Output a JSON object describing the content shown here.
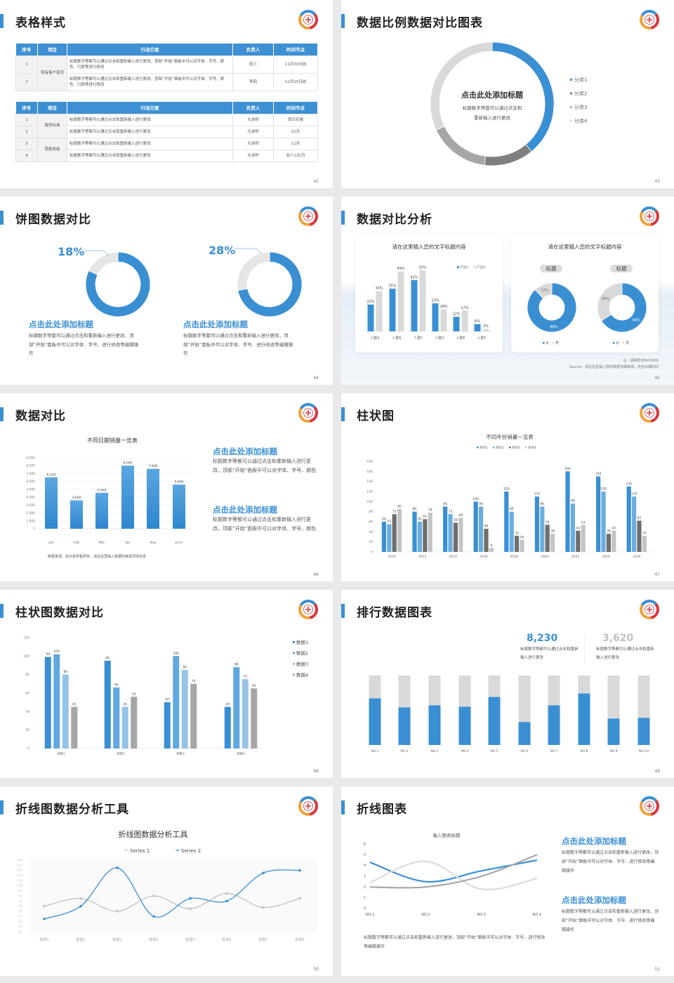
{
  "slides": [
    {
      "title": "表格样式",
      "page": "42"
    },
    {
      "title": "数据比例数据对比图表",
      "page": "43"
    },
    {
      "title": "饼图数据对比",
      "page": "44"
    },
    {
      "title": "数据对比分析",
      "page": "45"
    },
    {
      "title": "数据对比",
      "page": "46"
    },
    {
      "title": "柱状图",
      "page": "47"
    },
    {
      "title": "柱状图数据对比",
      "page": "48"
    },
    {
      "title": "排行数据图表",
      "page": "49"
    },
    {
      "title": "折线图数据分析工具",
      "page": "50"
    },
    {
      "title": "折线图表",
      "page": "51"
    }
  ],
  "tables": [
    {
      "headers": [
        "序号",
        "项目",
        "行动方案",
        "负责人",
        "时间节点"
      ],
      "group": "保有客户激活",
      "rows": [
        {
          "no": "1",
          "plan": "标题数字等都可以通过点击和重新输入进行更改，顶部“开始”面板中可以对字体、字号、颜色、行距等进行修改",
          "owner": "张三",
          "time": "11月30日前"
        },
        {
          "no": "2",
          "plan": "标题数字等都可以通过点击和重新输入进行更改，顶部“开始”面板中可以对字体、字号、颜色、行距等进行修改",
          "owner": "李四",
          "time": "11月15日前"
        }
      ]
    },
    {
      "headers": [
        "序号",
        "项目",
        "行动方案",
        "负责人",
        "时间节点"
      ],
      "groups": [
        "服务标准",
        "销售技能"
      ],
      "rows": [
        {
          "no": "1",
          "plan": "标题数字等都可以通过点击和重新输入进行更改",
          "owner": "大讲师",
          "time": "即日实施"
        },
        {
          "no": "2",
          "plan": "标题数字等都可以通过点击和重新输入进行更改",
          "owner": "大讲师",
          "time": "11月"
        },
        {
          "no": "3",
          "plan": "标题数字等都可以通过点击和重新输入进行更改",
          "owner": "大讲师",
          "time": "11月"
        },
        {
          "no": "4",
          "plan": "标题数字等都可以通过点击和重新输入进行更改",
          "owner": "大讲师",
          "time": "至少1次/月"
        }
      ]
    }
  ],
  "s43": {
    "heading": "点击此处添加标题",
    "line1": "标题数字等都可以通过点击和",
    "line2": "重新输入进行更改"
  },
  "s44": [
    {
      "percent": "18%",
      "heading": "点击此处添加标题",
      "text": "标题数字等都可以通过点击和重新输入进行更改，顶部“开始”面板中可以对字体、字号、进行修改等编辑操作"
    },
    {
      "percent": "28%",
      "heading": "点击此处添加标题",
      "text": "标题数字等都可以通过点击和重新输入进行更改，顶部“开始”面板中可以对字体、字号、进行修改等编辑操作"
    }
  ],
  "s45": {
    "card1_title": "请在这里输入您的文字标题内容",
    "card2_title": "请在这里输入您的文字标题内容",
    "pill1": "标题",
    "pill2": "标题",
    "note": "注：调研样本N=5000",
    "source": "Source：请在这里输入您的数据详细来源，包含日期时间"
  },
  "s46": {
    "source": "数据来源：启示家零售研究，请在这里输入数据的来源详情信息",
    "blocks": [
      {
        "heading": "点击此处添加标题",
        "text": "标题数字等都可以通过点击和重新输入进行更改，顶部“开始”面板中可以对字体、字号、颜色"
      },
      {
        "heading": "点击此处添加标题",
        "text": "标题数字等都可以通过点击和重新输入进行更改，顶部“开始”面板中可以对字体、字号、颜色"
      }
    ]
  },
  "s49": {
    "stats": [
      {
        "value": "8,230",
        "text": "标题数字等都可以通过点击和重新输入进行更改",
        "color": "#3a8fd3"
      },
      {
        "value": "3,620",
        "text": "标题数字等都可以通过点击和重新输入进行更改",
        "color": "#bfbfbf"
      }
    ]
  },
  "s51": {
    "bottom_text": "标题数字等都可以通过点击和重新输入进行更改，顶部“开始”面板中可以对字体、字号、进行修改等编辑操作",
    "blocks": [
      {
        "heading": "点击此处添加标题",
        "text": "标题数字等都可以通过点击和重新输入进行更改，顶部“开始”面板中可以对字体、字号、进行修改等编辑操作"
      },
      {
        "heading": "点击此处添加标题",
        "text": "标题数字等都可以通过点击和重新输入进行更改，顶部“开始”面板中可以对字体、字号、进行修改等编辑操作"
      }
    ]
  },
  "colors": {
    "accent": "#3a8fd3",
    "light_gray": "#d9d9d9"
  },
  "chart_data": [
    {
      "type": "pie",
      "donut": true,
      "categories": [
        "分类1",
        "分类2",
        "分类3",
        "分类4"
      ],
      "values": [
        39,
        13,
        16,
        32
      ],
      "colors": [
        "#3a8fd3",
        "#7f7f7f",
        "#a6a6a6",
        "#d9d9d9"
      ],
      "legend": "right"
    },
    {
      "type": "pie",
      "donut": true,
      "values": [
        82,
        18
      ],
      "colors": [
        "#3a8fd3",
        "#e6e6e6"
      ]
    },
    {
      "type": "pie",
      "donut": true,
      "values": [
        72,
        28
      ],
      "colors": [
        "#3a8fd3",
        "#e6e6e6"
      ]
    },
    {
      "type": "bar",
      "categories": [
        "人群A",
        "人群B",
        "人群C",
        "人群D",
        "人群E",
        "人群F"
      ],
      "series": [
        {
          "name": "产品A",
          "values": [
            22,
            35,
            42,
            23,
            12,
            6
          ],
          "color": "#3a8fd3"
        },
        {
          "name": "产品B",
          "values": [
            33,
            49,
            50,
            18,
            17,
            2
          ],
          "color": "#d9d9d9"
        }
      ],
      "unit": "%",
      "legend": "top-right",
      "grid": false
    },
    {
      "type": "pie",
      "donut": true,
      "categories": [
        "女",
        "男"
      ],
      "values": [
        88,
        12
      ],
      "colors": [
        "#3a8fd3",
        "#d9d9d9"
      ],
      "legend": "bottom"
    },
    {
      "type": "pie",
      "donut": true,
      "categories": [
        "女",
        "男"
      ],
      "values": [
        66,
        34
      ],
      "colors": [
        "#3a8fd3",
        "#d9d9d9"
      ],
      "legend": "bottom"
    },
    {
      "type": "bar",
      "title": "不同日期销量一览表",
      "categories": [
        "Jan",
        "Feb",
        "Mar",
        "Apr",
        "May",
        "June"
      ],
      "values": [
        6520,
        3600,
        4560,
        8000,
        7600,
        5600
      ],
      "ylim": [
        0,
        9000
      ],
      "ytick_step": 1000,
      "grid": true,
      "color": "#3a8fd3"
    },
    {
      "type": "bar",
      "title": "不同年份销量一览表",
      "categories": [
        "2010",
        "2012",
        "2014",
        "2016",
        "2018",
        "2020",
        "2022",
        "2024",
        "2026"
      ],
      "series": [
        {
          "name": "系列1",
          "values": [
            60,
            80,
            90,
            100,
            120,
            110,
            160,
            150,
            130
          ],
          "color": "#3a8fd3"
        },
        {
          "name": "系列2",
          "values": [
            55,
            60,
            75,
            90,
            80,
            90,
            96,
            120,
            110
          ],
          "color": "#6aaee0"
        },
        {
          "name": "系列3",
          "values": [
            75,
            65,
            58,
            46,
            32,
            54,
            42,
            36,
            62
          ],
          "color": "#6e6e6e"
        },
        {
          "name": "系列4",
          "values": [
            85,
            78,
            68,
            8,
            24,
            36,
            53,
            42,
            32
          ],
          "color": "#c4c4c4"
        }
      ],
      "ylim": [
        0,
        180
      ],
      "ytick_step": 20,
      "legend": "top",
      "grid": false
    },
    {
      "type": "bar",
      "categories": [
        "项目1",
        "项目2",
        "项目3",
        "项目4"
      ],
      "series": [
        {
          "name": "数据1",
          "values": [
            99,
            95,
            50,
            45
          ],
          "color": "#3a8fd3"
        },
        {
          "name": "数据2",
          "values": [
            102,
            66,
            100,
            88
          ],
          "color": "#62a8e0"
        },
        {
          "name": "数据3",
          "values": [
            80,
            45,
            85,
            75
          ],
          "color": "#95c3e8"
        },
        {
          "name": "数据4",
          "values": [
            45,
            56,
            70,
            65
          ],
          "color": "#a6a6a6"
        }
      ],
      "ylim": [
        0,
        120
      ],
      "ytick_step": 20,
      "legend": "right",
      "grid": false
    },
    {
      "type": "bar",
      "stacked_percent": true,
      "categories": [
        "NO.1",
        "NO.2",
        "NO.3",
        "NO.4",
        "NO.5",
        "NO.6",
        "NO.7",
        "NO.8",
        "NO.9",
        "NO.10"
      ],
      "values": [
        0.67,
        0.54,
        0.57,
        0.55,
        0.69,
        0.33,
        0.57,
        0.74,
        0.38,
        0.39
      ],
      "colors": [
        "#3a8fd3",
        "#d9d9d9"
      ]
    },
    {
      "type": "line",
      "title": "折线图数据分析工具",
      "categories": [
        "数据1",
        "数据2",
        "数据3",
        "数据4",
        "数据5",
        "数据6",
        "数据7",
        "数据8"
      ],
      "series": [
        {
          "name": "Series 1",
          "values": [
            50,
            80,
            30,
            90,
            40,
            100,
            45,
            80
          ],
          "color": "#c0c0c0"
        },
        {
          "name": "Series 2",
          "values": [
            0,
            50,
            200,
            10,
            80,
            70,
            180,
            190
          ],
          "color": "#3a8fd3"
        }
      ],
      "ylim": [
        -50,
        230
      ],
      "ytick_step": 20,
      "legend": "top",
      "smooth": true
    },
    {
      "type": "line",
      "title": "输入图表标题",
      "categories": [
        "NO.1",
        "NO.2",
        "NO.3",
        "NO.4"
      ],
      "series": [
        {
          "values": [
            4.3,
            2.5,
            3.5,
            4.5
          ],
          "color": "#3a8fd3"
        },
        {
          "values": [
            2.4,
            4.4,
            1.8,
            2.8
          ],
          "color": "#dcdcdc"
        },
        {
          "values": [
            2.0,
            2.0,
            3.0,
            5.0
          ],
          "color": "#a6a6a6"
        }
      ],
      "ylim": [
        0,
        6
      ],
      "ytick_step": 1,
      "smooth": true
    }
  ]
}
